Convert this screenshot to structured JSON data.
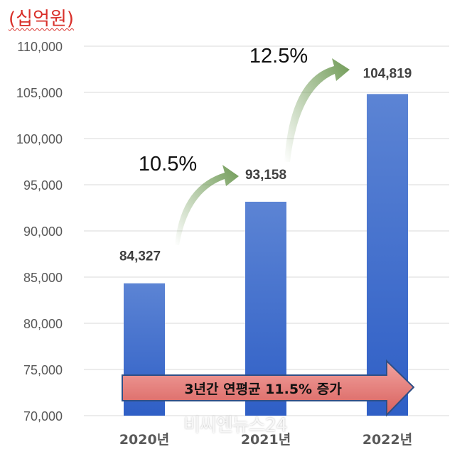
{
  "unit_label": "(십억원)",
  "watermark": "비씨엔뉴스24",
  "chart_data": {
    "type": "bar",
    "categories": [
      "2020년",
      "2021년",
      "2022년"
    ],
    "values": [
      84327,
      93158,
      104819
    ],
    "value_labels": [
      "84,327",
      "93,158",
      "104,819"
    ],
    "ylim": [
      70000,
      110000
    ],
    "yticks": [
      "70,000",
      "75,000",
      "80,000",
      "85,000",
      "90,000",
      "95,000",
      "100,000",
      "105,000",
      "110,000"
    ],
    "grid": true,
    "growth_annotations": [
      "10.5%",
      "12.5%"
    ],
    "summary_arrow": "3년간 연평균 11.5% 증가",
    "colors": {
      "bar_top": "#5c84d4",
      "bar_bottom": "#2f5fc6",
      "growth_arrow": "#6f9a55",
      "summary_arrow_fill": "#e06f6c",
      "summary_arrow_stroke": "#2f4f86",
      "grid": "#d9d9d9"
    }
  }
}
